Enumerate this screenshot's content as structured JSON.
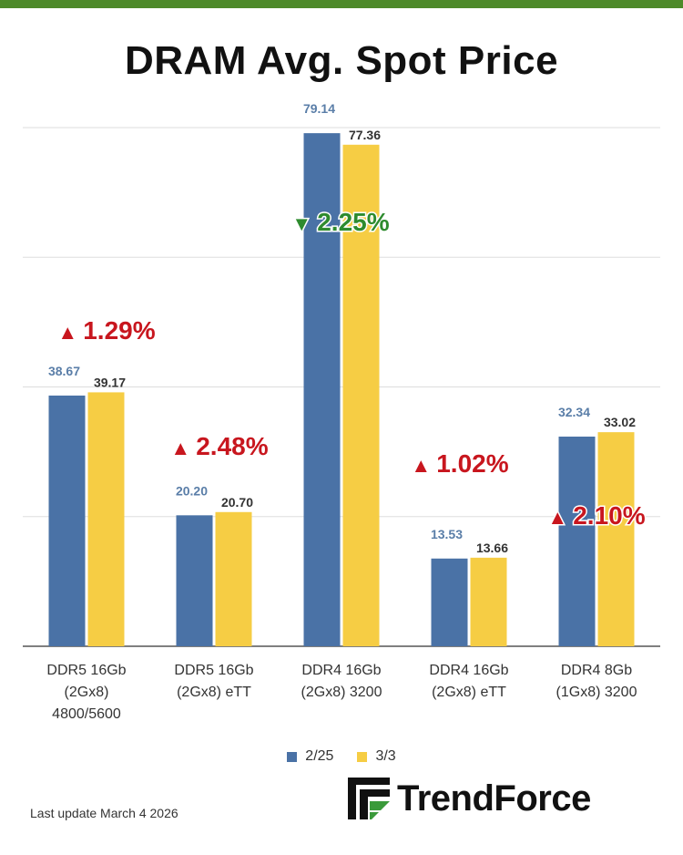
{
  "title": "DRAM Avg. Spot Price",
  "colors": {
    "series_1": "#4a72a6",
    "series_2": "#f6cd44",
    "up": "#c8161e",
    "down": "#2e8b2e",
    "value_label_1": "#5a7ea8",
    "value_label_2": "#333333",
    "top_bar": "#4e8a2a"
  },
  "chart_data": {
    "type": "bar",
    "title": "DRAM Avg. Spot Price",
    "xlabel": "",
    "ylabel": "",
    "ylim": [
      0,
      80
    ],
    "grid": true,
    "categories": [
      [
        "DDR5 16Gb",
        "(2Gx8)",
        "4800/5600"
      ],
      [
        "DDR5 16Gb",
        "(2Gx8) eTT"
      ],
      [
        "DDR4 16Gb",
        "(2Gx8) 3200"
      ],
      [
        "DDR4 16Gb",
        "(2Gx8) eTT"
      ],
      [
        "DDR4 8Gb",
        "(1Gx8) 3200"
      ]
    ],
    "series": [
      {
        "name": "2/25",
        "values": [
          38.67,
          20.2,
          79.14,
          13.53,
          32.34
        ],
        "labels": [
          "38.67",
          "20.20",
          "79.14",
          "13.53",
          "32.34"
        ]
      },
      {
        "name": "3/3",
        "values": [
          39.17,
          20.7,
          77.36,
          13.66,
          33.02
        ],
        "labels": [
          "39.17",
          "20.70",
          "77.36",
          "13.66",
          "33.02"
        ]
      }
    ],
    "changes": [
      {
        "direction": "up",
        "arrow": "▲",
        "text": "1.29%"
      },
      {
        "direction": "up",
        "arrow": "▲",
        "text": "2.48%"
      },
      {
        "direction": "down",
        "arrow": "▼",
        "text": "2.25%"
      },
      {
        "direction": "up",
        "arrow": "▲",
        "text": "1.02%"
      },
      {
        "direction": "up",
        "arrow": "▲",
        "text": "2.10%"
      }
    ],
    "legend": [
      "2/25",
      "3/3"
    ],
    "legend_position": "bottom"
  },
  "footer": {
    "last_update": "Last update  March 4  2026"
  },
  "logo": {
    "text": "TrendForce"
  }
}
